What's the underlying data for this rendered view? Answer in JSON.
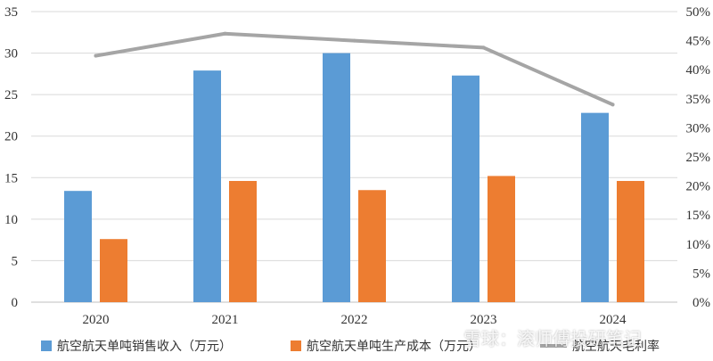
{
  "chart_data": {
    "type": "bar",
    "categories": [
      "2020",
      "2021",
      "2022",
      "2023",
      "2024"
    ],
    "series": [
      {
        "name": "航空航天单吨销售收入（万元）",
        "type": "bar",
        "axis": "left",
        "color": "#5b9bd5",
        "values": [
          13.4,
          27.9,
          30.0,
          27.3,
          22.8
        ]
      },
      {
        "name": "航空航天单吨生产成本（万元）",
        "type": "bar",
        "axis": "left",
        "color": "#ed7d31",
        "values": [
          7.6,
          14.6,
          13.5,
          15.2,
          14.6
        ]
      },
      {
        "name": "航空航天毛利率",
        "type": "line",
        "axis": "right",
        "color": "#a5a5a5",
        "values": [
          0.424,
          0.462,
          0.45,
          0.438,
          0.34
        ]
      }
    ],
    "y_left": {
      "min": 0,
      "max": 35,
      "step": 5,
      "ticks": [
        "0",
        "5",
        "10",
        "15",
        "20",
        "25",
        "30",
        "35"
      ]
    },
    "y_right": {
      "min": 0,
      "max": 0.5,
      "step": 0.05,
      "ticks": [
        "0%",
        "5%",
        "10%",
        "15%",
        "20%",
        "25%",
        "30%",
        "35%",
        "40%",
        "45%",
        "50%"
      ]
    },
    "grid": "horizontal",
    "legend_position": "bottom"
  },
  "legend": {
    "item1": "航空航天单吨销售收入（万元）",
    "item2": "航空航天单吨生产成本（万元）",
    "item3": "航空航天毛利率"
  },
  "watermark": "雪球：滚师傅投研笔记"
}
